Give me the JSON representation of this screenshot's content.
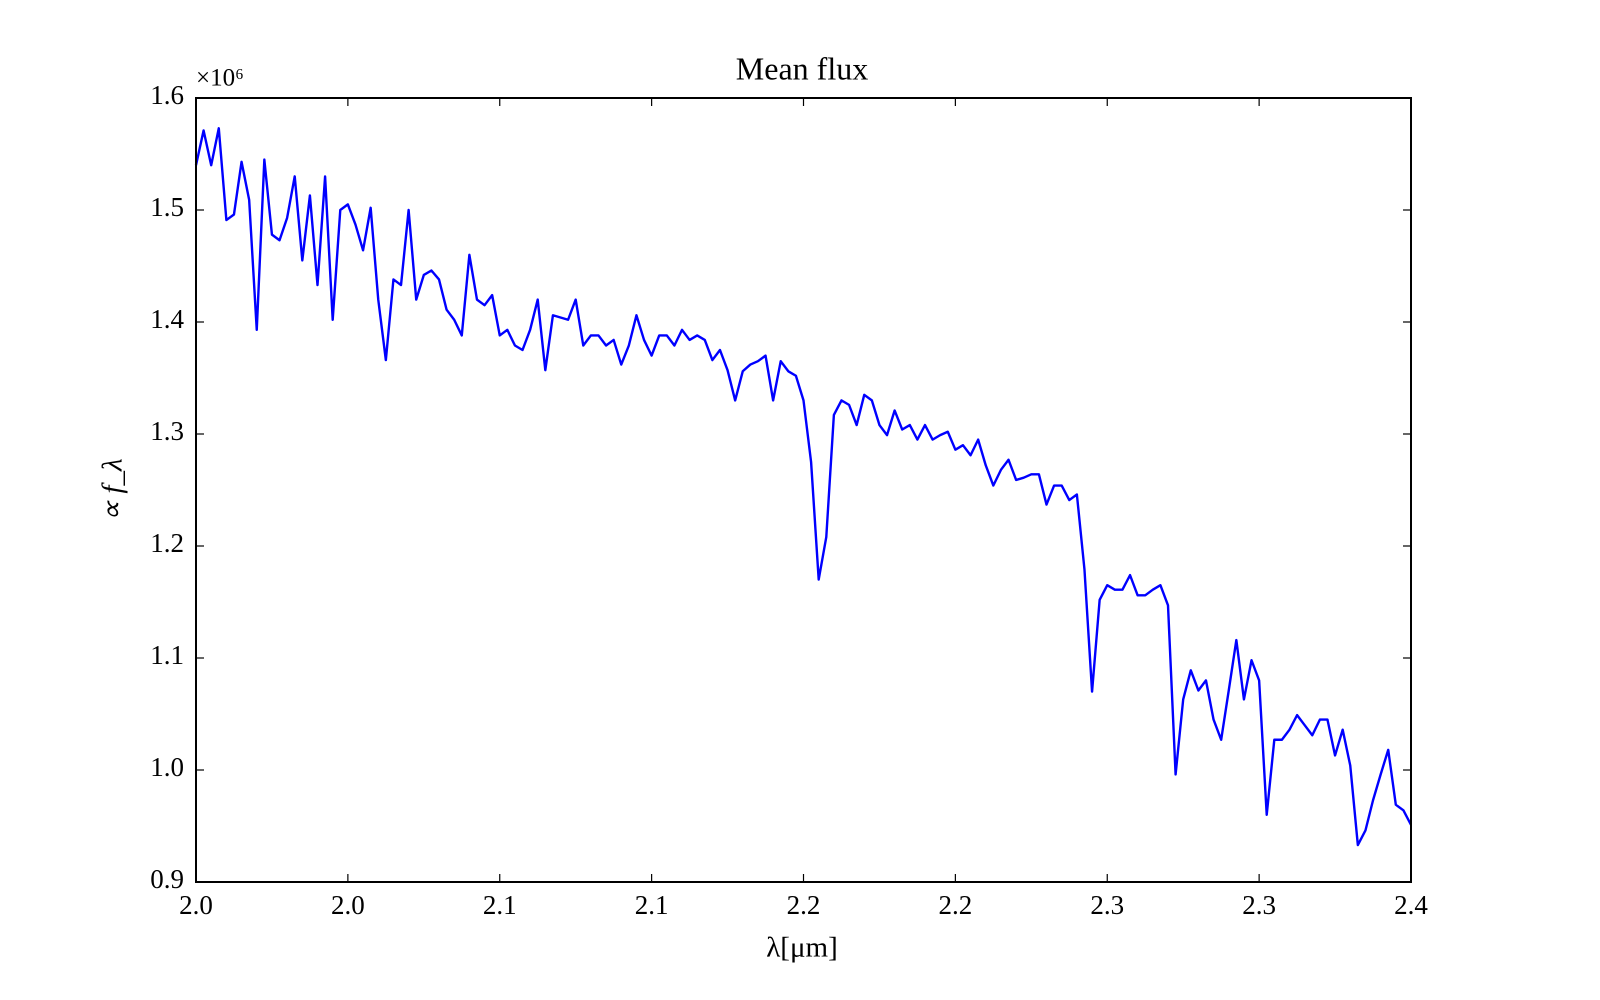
{
  "chart_data": {
    "type": "line",
    "title": "Mean flux",
    "x_label": "λ[μm]",
    "y_label": "∝ f_λ",
    "y_offset_label": "×10⁶",
    "xlim": [
      1.98,
      2.38
    ],
    "ylim": [
      0.9,
      1.6
    ],
    "xticks": [
      {
        "value": 1.98,
        "label": "2.0"
      },
      {
        "value": 2.03,
        "label": "2.0"
      },
      {
        "value": 2.08,
        "label": "2.1"
      },
      {
        "value": 2.13,
        "label": "2.1"
      },
      {
        "value": 2.18,
        "label": "2.2"
      },
      {
        "value": 2.23,
        "label": "2.2"
      },
      {
        "value": 2.28,
        "label": "2.3"
      },
      {
        "value": 2.33,
        "label": "2.3"
      },
      {
        "value": 2.38,
        "label": "2.4"
      }
    ],
    "yticks": [
      0.9,
      {
        "value": 1,
        "label": "1.0"
      },
      1.1,
      1.2,
      1.3,
      1.4,
      1.5,
      1.6
    ],
    "grid": false,
    "x": [
      1.98,
      1.9825,
      1.985,
      1.9875,
      1.99,
      1.9925,
      1.995,
      1.9975,
      2.0,
      2.0025,
      2.005,
      2.0075,
      2.01,
      2.0125,
      2.015,
      2.0175,
      2.02,
      2.0225,
      2.025,
      2.0275,
      2.03,
      2.0325,
      2.035,
      2.0375,
      2.04,
      2.0425,
      2.045,
      2.0475,
      2.05,
      2.0525,
      2.055,
      2.0575,
      2.06,
      2.0625,
      2.065,
      2.0675,
      2.07,
      2.0725,
      2.075,
      2.0775,
      2.08,
      2.0825,
      2.085,
      2.0875,
      2.09,
      2.0925,
      2.095,
      2.0975,
      2.1,
      2.1025,
      2.105,
      2.1075,
      2.11,
      2.1125,
      2.115,
      2.1175,
      2.12,
      2.1225,
      2.125,
      2.1275,
      2.13,
      2.1325,
      2.135,
      2.1375,
      2.14,
      2.1425,
      2.145,
      2.1475,
      2.15,
      2.1525,
      2.155,
      2.1575,
      2.16,
      2.1625,
      2.165,
      2.1675,
      2.17,
      2.1725,
      2.175,
      2.1775,
      2.18,
      2.1825,
      2.185,
      2.1875,
      2.19,
      2.1925,
      2.195,
      2.1975,
      2.2,
      2.2025,
      2.205,
      2.2075,
      2.21,
      2.2125,
      2.215,
      2.2175,
      2.22,
      2.2225,
      2.225,
      2.2275,
      2.23,
      2.2325,
      2.235,
      2.2375,
      2.24,
      2.2425,
      2.245,
      2.2475,
      2.25,
      2.2525,
      2.255,
      2.2575,
      2.26,
      2.2625,
      2.265,
      2.2675,
      2.27,
      2.2725,
      2.275,
      2.2775,
      2.28,
      2.2825,
      2.285,
      2.2875,
      2.29,
      2.2925,
      2.295,
      2.2975,
      2.3,
      2.3025,
      2.305,
      2.3075,
      2.31,
      2.3125,
      2.315,
      2.3175,
      2.32,
      2.3225,
      2.325,
      2.3275,
      2.33,
      2.3325,
      2.335,
      2.3375,
      2.34,
      2.3425,
      2.345,
      2.3475,
      2.35,
      2.3525,
      2.355,
      2.3575,
      2.36,
      2.3625,
      2.365,
      2.3675,
      2.37,
      2.3725,
      2.375,
      2.3775,
      2.38
    ],
    "series": [
      {
        "color": "#0000ff",
        "values": [
          1.54,
          1.571,
          1.54,
          1.573,
          1.491,
          1.496,
          1.543,
          1.509,
          1.393,
          1.545,
          1.478,
          1.473,
          1.493,
          1.53,
          1.455,
          1.513,
          1.433,
          1.53,
          1.402,
          1.5,
          1.505,
          1.487,
          1.464,
          1.502,
          1.42,
          1.366,
          1.438,
          1.433,
          1.5,
          1.42,
          1.442,
          1.446,
          1.438,
          1.411,
          1.402,
          1.388,
          1.46,
          1.42,
          1.415,
          1.424,
          1.388,
          1.393,
          1.379,
          1.375,
          1.393,
          1.42,
          1.357,
          1.406,
          1.404,
          1.402,
          1.42,
          1.379,
          1.388,
          1.388,
          1.379,
          1.384,
          1.362,
          1.379,
          1.406,
          1.384,
          1.37,
          1.388,
          1.388,
          1.379,
          1.393,
          1.384,
          1.388,
          1.384,
          1.366,
          1.375,
          1.357,
          1.33,
          1.356,
          1.362,
          1.365,
          1.37,
          1.33,
          1.365,
          1.356,
          1.352,
          1.33,
          1.275,
          1.17,
          1.208,
          1.317,
          1.33,
          1.326,
          1.308,
          1.335,
          1.33,
          1.308,
          1.299,
          1.321,
          1.304,
          1.308,
          1.295,
          1.308,
          1.295,
          1.299,
          1.302,
          1.286,
          1.29,
          1.281,
          1.295,
          1.272,
          1.254,
          1.268,
          1.277,
          1.259,
          1.261,
          1.264,
          1.264,
          1.237,
          1.254,
          1.254,
          1.241,
          1.246,
          1.179,
          1.07,
          1.152,
          1.165,
          1.161,
          1.161,
          1.174,
          1.156,
          1.156,
          1.161,
          1.165,
          1.147,
          0.996,
          1.063,
          1.089,
          1.071,
          1.08,
          1.045,
          1.027,
          1.071,
          1.116,
          1.063,
          1.098,
          1.08,
          0.96,
          1.027,
          1.027,
          1.036,
          1.049,
          1.04,
          1.031,
          1.045,
          1.045,
          1.013,
          1.036,
          1.004,
          0.933,
          0.946,
          0.973,
          0.996,
          1.018,
          0.969,
          0.964,
          0.951
        ]
      }
    ]
  }
}
